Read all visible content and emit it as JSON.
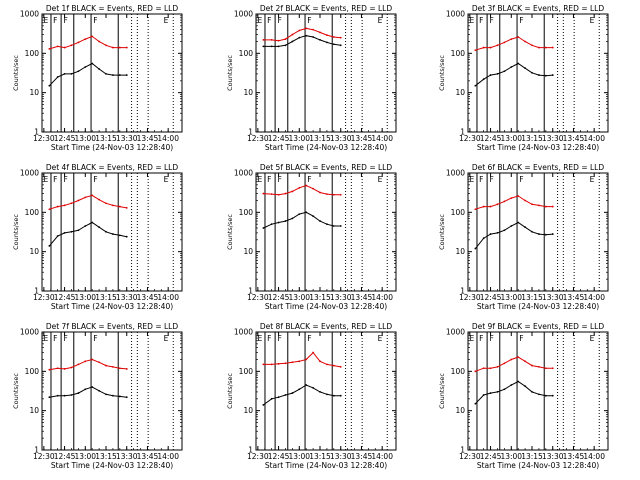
{
  "figure": {
    "xaxis_label": "Start Time (24-Nov-03 12:28:40)",
    "yaxis_label": "Counts/sec",
    "x_tick_labels": [
      "12:30",
      "12:45",
      "13:00",
      "13:15",
      "13:30",
      "13:45",
      "14:00"
    ],
    "y_tick_labels": [
      "1",
      "10",
      "100",
      "1000"
    ],
    "flag_labels": [
      "E",
      "F",
      "F",
      "F",
      "E"
    ],
    "colors": {
      "events": "#000000",
      "lld": "#e00000"
    }
  },
  "chart_data": [
    {
      "type": "line",
      "title": "Det 1f BLACK = Events, RED = LLD",
      "xlabel": "Start Time (24-Nov-03 12:28:40)",
      "ylabel": "Counts/sec",
      "xlim": [
        "12:28:40",
        "14:10"
      ],
      "ylim": [
        1,
        1000
      ],
      "yscale": "log",
      "x": [
        "12:34",
        "12:40",
        "12:45",
        "12:50",
        "12:55",
        "13:00",
        "13:05",
        "13:10",
        "13:15",
        "13:20",
        "13:25",
        "13:30"
      ],
      "series": [
        {
          "name": "Events",
          "values": [
            15,
            25,
            30,
            30,
            35,
            45,
            55,
            40,
            30,
            28,
            28,
            28
          ]
        },
        {
          "name": "LLD",
          "values": [
            130,
            150,
            140,
            160,
            190,
            230,
            270,
            200,
            160,
            140,
            140,
            140
          ]
        }
      ]
    },
    {
      "type": "line",
      "title": "Det 2f BLACK = Events, RED = LLD",
      "xlabel": "Start Time (24-Nov-03 12:28:40)",
      "ylabel": "Counts/sec",
      "xlim": [
        "12:28:40",
        "14:10"
      ],
      "ylim": [
        1,
        1000
      ],
      "yscale": "log",
      "x": [
        "12:34",
        "12:40",
        "12:45",
        "12:50",
        "12:55",
        "13:00",
        "13:05",
        "13:10",
        "13:15",
        "13:20",
        "13:25",
        "13:30"
      ],
      "series": [
        {
          "name": "Events",
          "values": [
            150,
            150,
            150,
            160,
            200,
            250,
            280,
            260,
            220,
            190,
            170,
            160
          ]
        },
        {
          "name": "LLD",
          "values": [
            220,
            220,
            210,
            230,
            300,
            380,
            430,
            400,
            340,
            290,
            260,
            250
          ]
        }
      ]
    },
    {
      "type": "line",
      "title": "Det 3f BLACK = Events, RED = LLD",
      "xlabel": "Start Time (24-Nov-03 12:28:40)",
      "ylabel": "Counts/sec",
      "xlim": [
        "12:28:40",
        "14:10"
      ],
      "ylim": [
        1,
        1000
      ],
      "yscale": "log",
      "x": [
        "12:34",
        "12:40",
        "12:45",
        "12:50",
        "12:55",
        "13:00",
        "13:05",
        "13:10",
        "13:15",
        "13:20",
        "13:25",
        "13:30"
      ],
      "series": [
        {
          "name": "Events",
          "values": [
            15,
            22,
            28,
            30,
            35,
            45,
            55,
            42,
            32,
            28,
            27,
            28
          ]
        },
        {
          "name": "LLD",
          "values": [
            120,
            140,
            140,
            160,
            190,
            230,
            260,
            200,
            160,
            140,
            140,
            140
          ]
        }
      ]
    },
    {
      "type": "line",
      "title": "Det 4f BLACK = Events, RED = LLD",
      "xlabel": "Start Time (24-Nov-03 12:28:40)",
      "ylabel": "Counts/sec",
      "xlim": [
        "12:28:40",
        "14:10"
      ],
      "ylim": [
        1,
        1000
      ],
      "yscale": "log",
      "x": [
        "12:34",
        "12:40",
        "12:45",
        "12:50",
        "12:55",
        "13:00",
        "13:05",
        "13:10",
        "13:15",
        "13:20",
        "13:25",
        "13:30"
      ],
      "series": [
        {
          "name": "Events",
          "values": [
            14,
            25,
            30,
            32,
            35,
            45,
            55,
            42,
            32,
            28,
            26,
            24
          ]
        },
        {
          "name": "LLD",
          "values": [
            120,
            140,
            150,
            170,
            200,
            240,
            270,
            210,
            170,
            150,
            140,
            130
          ]
        }
      ]
    },
    {
      "type": "line",
      "title": "Det 5f BLACK = Events, RED = LLD",
      "xlabel": "Start Time (24-Nov-03 12:28:40)",
      "ylabel": "Counts/sec",
      "xlim": [
        "12:28:40",
        "14:10"
      ],
      "ylim": [
        1,
        1000
      ],
      "yscale": "log",
      "x": [
        "12:34",
        "12:40",
        "12:45",
        "12:50",
        "12:55",
        "13:00",
        "13:05",
        "13:10",
        "13:15",
        "13:20",
        "13:25",
        "13:30"
      ],
      "series": [
        {
          "name": "Events",
          "values": [
            40,
            50,
            55,
            60,
            70,
            90,
            100,
            80,
            60,
            50,
            45,
            45
          ]
        },
        {
          "name": "LLD",
          "values": [
            300,
            290,
            280,
            300,
            340,
            420,
            480,
            400,
            320,
            290,
            280,
            280
          ]
        }
      ]
    },
    {
      "type": "line",
      "title": "Det 6f BLACK = Events, RED = LLD",
      "xlabel": "Start Time (24-Nov-03 12:28:40)",
      "ylabel": "Counts/sec",
      "xlim": [
        "12:28:40",
        "14:10"
      ],
      "ylim": [
        1,
        1000
      ],
      "yscale": "log",
      "x": [
        "12:34",
        "12:40",
        "12:45",
        "12:50",
        "12:55",
        "13:00",
        "13:05",
        "13:10",
        "13:15",
        "13:20",
        "13:25",
        "13:30"
      ],
      "series": [
        {
          "name": "Events",
          "values": [
            12,
            22,
            28,
            30,
            35,
            45,
            55,
            42,
            32,
            28,
            27,
            28
          ]
        },
        {
          "name": "LLD",
          "values": [
            120,
            140,
            140,
            160,
            190,
            230,
            260,
            200,
            160,
            150,
            140,
            140
          ]
        }
      ]
    },
    {
      "type": "line",
      "title": "Det 7f BLACK = Events, RED = LLD",
      "xlabel": "Start Time (24-Nov-03 12:28:40)",
      "ylabel": "Counts/sec",
      "xlim": [
        "12:28:40",
        "14:10"
      ],
      "ylim": [
        1,
        1000
      ],
      "yscale": "log",
      "x": [
        "12:34",
        "12:40",
        "12:45",
        "12:50",
        "12:55",
        "13:00",
        "13:05",
        "13:10",
        "13:15",
        "13:20",
        "13:25",
        "13:30"
      ],
      "series": [
        {
          "name": "Events",
          "values": [
            22,
            24,
            24,
            25,
            28,
            35,
            40,
            32,
            26,
            24,
            23,
            22
          ]
        },
        {
          "name": "LLD",
          "values": [
            110,
            120,
            115,
            125,
            150,
            180,
            200,
            170,
            140,
            130,
            120,
            115
          ]
        }
      ]
    },
    {
      "type": "line",
      "title": "Det 8f BLACK = Events, RED = LLD",
      "xlabel": "Start Time (24-Nov-03 12:28:40)",
      "ylabel": "Counts/sec",
      "xlim": [
        "12:28:40",
        "14:10"
      ],
      "ylim": [
        1,
        1000
      ],
      "yscale": "log",
      "x": [
        "12:34",
        "12:40",
        "12:45",
        "12:50",
        "12:55",
        "13:00",
        "13:05",
        "13:10",
        "13:15",
        "13:20",
        "13:25",
        "13:30"
      ],
      "series": [
        {
          "name": "Events",
          "values": [
            14,
            20,
            22,
            25,
            28,
            35,
            45,
            38,
            30,
            26,
            24,
            24
          ]
        },
        {
          "name": "LLD",
          "values": [
            150,
            150,
            155,
            160,
            170,
            180,
            200,
            300,
            180,
            150,
            140,
            130
          ]
        }
      ]
    },
    {
      "type": "line",
      "title": "Det 9f BLACK = Events, RED = LLD",
      "xlabel": "Start Time (24-Nov-03 12:28:40)",
      "ylabel": "Counts/sec",
      "xlim": [
        "12:28:40",
        "14:10"
      ],
      "ylim": [
        1,
        1000
      ],
      "yscale": "log",
      "x": [
        "12:34",
        "12:40",
        "12:45",
        "12:50",
        "12:55",
        "13:00",
        "13:05",
        "13:10",
        "13:15",
        "13:20",
        "13:25",
        "13:30"
      ],
      "series": [
        {
          "name": "Events",
          "values": [
            15,
            25,
            28,
            30,
            35,
            45,
            55,
            42,
            30,
            26,
            24,
            24
          ]
        },
        {
          "name": "LLD",
          "values": [
            100,
            120,
            120,
            130,
            160,
            200,
            230,
            180,
            140,
            130,
            120,
            120
          ]
        }
      ]
    }
  ]
}
